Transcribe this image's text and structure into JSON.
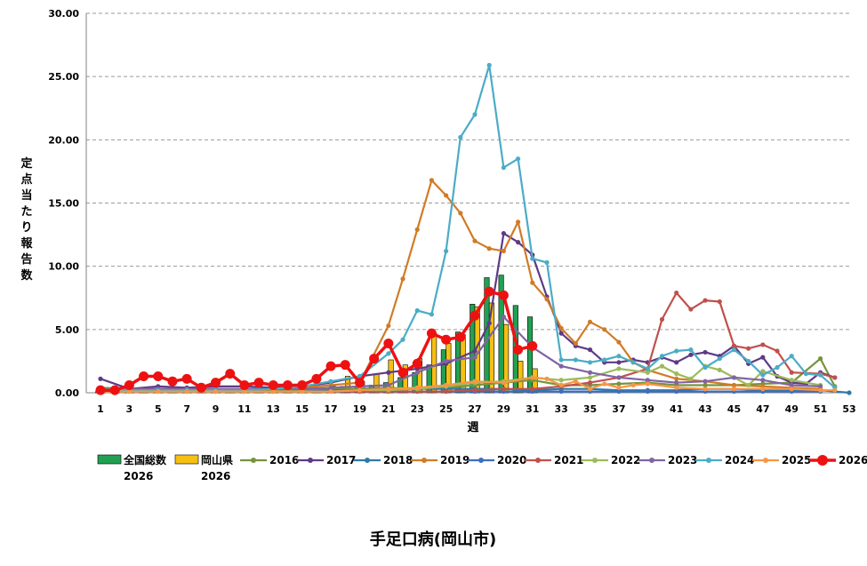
{
  "chart_data": {
    "type": "bar+line",
    "title": "手足口病(岡山市)",
    "xlabel": "週",
    "ylabel": "定点当たり報告数",
    "ylim": [
      0,
      30
    ],
    "yticks": [
      "0.00",
      "5.00",
      "10.00",
      "15.00",
      "20.00",
      "25.00",
      "30.00"
    ],
    "xlim": [
      1,
      53
    ],
    "xticks": [
      "1",
      "3",
      "5",
      "7",
      "9",
      "11",
      "13",
      "15",
      "17",
      "19",
      "21",
      "23",
      "25",
      "27",
      "29",
      "31",
      "33",
      "35",
      "37",
      "39",
      "41",
      "43",
      "45",
      "47",
      "49",
      "51",
      "53"
    ],
    "grid": true,
    "legend_position": "bottom",
    "bar_series": [
      {
        "name": "全国総数",
        "sub": "2026",
        "color": "#22a052",
        "values": [
          0.1,
          0.1,
          0.1,
          0.1,
          0.1,
          0.1,
          0.1,
          0.1,
          0.1,
          0.2,
          0.2,
          0.2,
          0.2,
          0.2,
          0.3,
          0.3,
          0.4,
          0.5,
          0.5,
          0.6,
          0.8,
          1.2,
          1.6,
          2.2,
          3.4,
          4.8,
          7.0,
          9.1,
          9.3,
          6.9,
          6.0
        ]
      },
      {
        "name": "岡山県",
        "sub": "2026",
        "color": "#f5bf14",
        "values": [
          0.1,
          0.1,
          0.1,
          0.1,
          0.1,
          0.1,
          0.1,
          0.1,
          0.1,
          0.2,
          0.2,
          0.2,
          0.2,
          0.2,
          0.3,
          0.4,
          0.5,
          1.3,
          0.9,
          1.5,
          2.6,
          2.2,
          2.7,
          4.7,
          3.9,
          4.6,
          6.8,
          7.1,
          5.4,
          2.5,
          1.9
        ]
      }
    ],
    "line_series": [
      {
        "name": "2016",
        "color": "#77933c",
        "x": [
          1,
          3,
          5,
          7,
          9,
          11,
          13,
          15,
          17,
          19,
          21,
          23,
          25,
          27,
          29,
          31,
          33,
          35,
          37,
          39,
          41,
          43,
          45,
          47,
          49,
          51,
          52
        ],
        "values": [
          0.4,
          0.3,
          0.3,
          0.3,
          0.3,
          0.2,
          0.2,
          0.2,
          0.3,
          0.3,
          0.4,
          0.3,
          0.4,
          0.6,
          0.8,
          1.0,
          0.6,
          0.6,
          0.7,
          0.8,
          0.6,
          0.6,
          0.6,
          0.7,
          0.8,
          2.7,
          0.5
        ]
      },
      {
        "name": "2017",
        "color": "#5e3a86",
        "x": [
          1,
          3,
          5,
          7,
          9,
          11,
          13,
          15,
          17,
          19,
          21,
          23,
          25,
          27,
          28,
          29,
          30,
          31,
          32,
          33,
          34,
          35,
          36,
          37,
          38,
          39,
          40,
          41,
          42,
          43,
          44,
          45,
          46,
          47,
          48,
          49,
          50,
          51,
          52
        ],
        "values": [
          1.1,
          0.3,
          0.5,
          0.4,
          0.5,
          0.5,
          0.4,
          0.5,
          0.8,
          1.3,
          1.6,
          1.9,
          2.3,
          3.3,
          5.5,
          12.6,
          11.9,
          10.9,
          7.6,
          4.7,
          3.7,
          3.4,
          2.4,
          2.4,
          2.6,
          2.4,
          2.8,
          2.4,
          3.0,
          3.2,
          2.9,
          3.7,
          2.3,
          2.8,
          1.3,
          0.8,
          0.7,
          1.6,
          1.2
        ]
      },
      {
        "name": "2018",
        "color": "#2e7aa6",
        "x": [
          1,
          3,
          5,
          7,
          9,
          11,
          13,
          15,
          17,
          19,
          21,
          23,
          25,
          27,
          29,
          31,
          33,
          35,
          37,
          39,
          41,
          43,
          45,
          47,
          49,
          51,
          53
        ],
        "values": [
          0.2,
          0.1,
          0.1,
          0.1,
          0.1,
          0.1,
          0.1,
          0.1,
          0.2,
          0.2,
          0.3,
          0.3,
          0.3,
          0.3,
          0.3,
          0.2,
          0.3,
          0.3,
          0.2,
          0.2,
          0.2,
          0.3,
          0.3,
          0.2,
          0.2,
          0.2,
          0.0
        ]
      },
      {
        "name": "2019",
        "color": "#d07b26",
        "x": [
          1,
          3,
          5,
          7,
          9,
          11,
          13,
          15,
          17,
          19,
          21,
          22,
          23,
          24,
          25,
          26,
          27,
          28,
          29,
          30,
          31,
          32,
          33,
          34,
          35,
          36,
          37,
          38,
          39,
          41,
          43,
          45,
          47,
          49,
          51
        ],
        "values": [
          0.3,
          0.3,
          0.2,
          0.2,
          0.2,
          0.2,
          0.3,
          0.4,
          0.6,
          0.8,
          5.3,
          9.0,
          12.9,
          16.8,
          15.6,
          14.2,
          12.0,
          11.4,
          11.2,
          13.5,
          8.7,
          7.4,
          5.1,
          3.9,
          5.6,
          5.0,
          4.0,
          2.4,
          1.8,
          1.1,
          0.9,
          0.6,
          0.5,
          0.4,
          0.3
        ]
      },
      {
        "name": "2020",
        "color": "#3d6ebf",
        "x": [
          1,
          3,
          5,
          7,
          9,
          11,
          13,
          15,
          17,
          19,
          21,
          23,
          25,
          27,
          29,
          31,
          33,
          35,
          37,
          39,
          41,
          43,
          45,
          47,
          49,
          51
        ],
        "values": [
          0.2,
          0.2,
          0.2,
          0.1,
          0.1,
          0.1,
          0.1,
          0.1,
          0.1,
          0.1,
          0.1,
          0.1,
          0.1,
          0.1,
          0.1,
          0.1,
          0.1,
          0.1,
          0.1,
          0.1,
          0.1,
          0.1,
          0.1,
          0.1,
          0.1,
          0.1
        ]
      },
      {
        "name": "2021",
        "color": "#c0504d",
        "x": [
          1,
          3,
          5,
          7,
          9,
          11,
          13,
          15,
          17,
          19,
          21,
          23,
          25,
          27,
          29,
          31,
          33,
          35,
          37,
          39,
          40,
          41,
          42,
          43,
          44,
          45,
          46,
          47,
          48,
          49,
          51,
          52
        ],
        "values": [
          0.1,
          0.1,
          0.1,
          0.1,
          0.1,
          0.1,
          0.1,
          0.1,
          0.1,
          0.1,
          0.1,
          0.1,
          0.1,
          0.2,
          0.3,
          0.3,
          0.5,
          0.8,
          1.2,
          1.9,
          5.8,
          7.9,
          6.6,
          7.3,
          7.2,
          3.7,
          3.5,
          3.8,
          3.3,
          1.6,
          1.5,
          1.2
        ]
      },
      {
        "name": "2022",
        "color": "#9bbb59",
        "x": [
          1,
          3,
          5,
          7,
          9,
          11,
          13,
          15,
          17,
          19,
          21,
          23,
          25,
          27,
          29,
          31,
          33,
          35,
          37,
          39,
          40,
          41,
          42,
          43,
          44,
          45,
          46,
          47,
          49,
          51
        ],
        "values": [
          0.1,
          0.1,
          0.1,
          0.1,
          0.1,
          0.1,
          0.1,
          0.1,
          0.1,
          0.2,
          0.2,
          0.3,
          0.5,
          0.8,
          0.9,
          1.2,
          1.0,
          1.2,
          1.9,
          1.6,
          2.1,
          1.5,
          1.1,
          2.1,
          1.8,
          1.2,
          0.6,
          1.7,
          1.0,
          0.6
        ]
      },
      {
        "name": "2023",
        "color": "#8064a2",
        "x": [
          1,
          3,
          5,
          7,
          9,
          11,
          13,
          15,
          17,
          19,
          21,
          23,
          25,
          27,
          29,
          31,
          33,
          35,
          37,
          39,
          41,
          43,
          45,
          47,
          49,
          51
        ],
        "values": [
          0.3,
          0.3,
          0.3,
          0.3,
          0.3,
          0.3,
          0.3,
          0.3,
          0.4,
          0.5,
          0.6,
          1.6,
          2.5,
          2.8,
          6.0,
          3.6,
          2.1,
          1.6,
          1.2,
          1.0,
          0.8,
          0.9,
          1.2,
          1.0,
          0.6,
          0.5
        ]
      },
      {
        "name": "2024",
        "color": "#4bacc6",
        "x": [
          1,
          3,
          5,
          7,
          9,
          11,
          13,
          15,
          17,
          19,
          21,
          22,
          23,
          24,
          25,
          26,
          27,
          28,
          29,
          30,
          31,
          32,
          33,
          34,
          35,
          36,
          37,
          38,
          39,
          40,
          41,
          42,
          43,
          44,
          45,
          46,
          47,
          48,
          49,
          50,
          51,
          52
        ],
        "values": [
          0.3,
          0.2,
          0.2,
          0.2,
          0.2,
          0.2,
          0.3,
          0.5,
          0.9,
          1.3,
          3.1,
          4.2,
          6.5,
          6.2,
          11.2,
          20.2,
          22.0,
          25.9,
          17.8,
          18.5,
          10.6,
          10.3,
          2.6,
          2.6,
          2.4,
          2.6,
          2.9,
          2.4,
          1.9,
          2.9,
          3.3,
          3.4,
          2.0,
          2.7,
          3.4,
          2.5,
          1.4,
          2.0,
          2.9,
          1.5,
          1.4,
          0.4
        ]
      },
      {
        "name": "2025",
        "color": "#f79646",
        "x": [
          1,
          3,
          5,
          7,
          9,
          11,
          13,
          15,
          17,
          19,
          21,
          23,
          25,
          27,
          29,
          31,
          32,
          33,
          34,
          35,
          36,
          37,
          38,
          39,
          41,
          43,
          45,
          47,
          49,
          51,
          52
        ],
        "values": [
          0.1,
          0.1,
          0.1,
          0.1,
          0.1,
          0.1,
          0.1,
          0.1,
          0.1,
          0.2,
          0.3,
          0.4,
          0.6,
          0.9,
          0.8,
          1.2,
          1.1,
          0.6,
          0.9,
          0.3,
          0.7,
          0.4,
          0.6,
          0.7,
          0.4,
          0.3,
          0.3,
          0.3,
          0.3,
          0.2,
          0.2
        ]
      },
      {
        "name": "2026",
        "color": "#ee1111",
        "x": [
          1,
          2,
          3,
          4,
          5,
          6,
          7,
          8,
          9,
          10,
          11,
          12,
          13,
          14,
          15,
          16,
          17,
          18,
          19,
          20,
          21,
          22,
          23,
          24,
          25,
          26,
          27,
          28,
          29,
          30,
          31
        ],
        "values": [
          0.2,
          0.2,
          0.6,
          1.3,
          1.3,
          0.9,
          1.1,
          0.4,
          0.8,
          1.5,
          0.6,
          0.8,
          0.6,
          0.6,
          0.6,
          1.1,
          2.1,
          2.2,
          0.8,
          2.7,
          3.9,
          1.6,
          2.3,
          4.7,
          4.2,
          4.4,
          6.1,
          8.0,
          7.7,
          3.4,
          3.7
        ]
      }
    ]
  }
}
